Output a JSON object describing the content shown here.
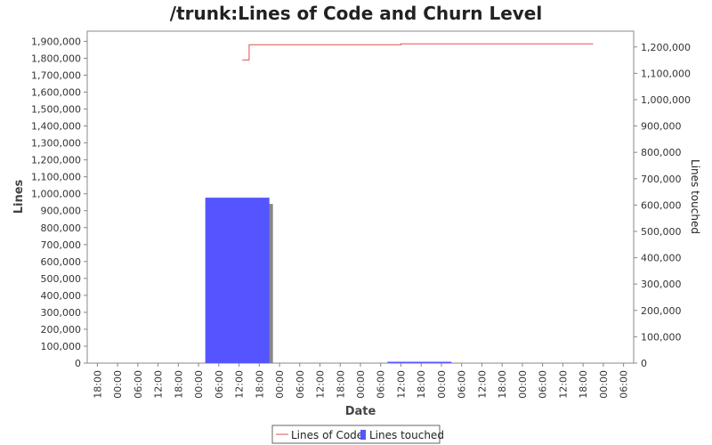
{
  "chart_data": {
    "type": "bar",
    "title": "/trunk:Lines of Code and Churn Level",
    "xlabel": "Date",
    "ylabel": "Lines",
    "ylabel_right": "Lines touched",
    "ylim": [
      0,
      1960000
    ],
    "ylim_right": [
      0,
      1260000
    ],
    "y_ticks": [
      0,
      100000,
      200000,
      300000,
      400000,
      500000,
      600000,
      700000,
      800000,
      900000,
      1000000,
      1100000,
      1200000,
      1300000,
      1400000,
      1500000,
      1600000,
      1700000,
      1800000,
      1900000
    ],
    "y_tick_labels": [
      "0",
      "100,000",
      "200,000",
      "300,000",
      "400,000",
      "500,000",
      "600,000",
      "700,000",
      "800,000",
      "900,000",
      "1,000,000",
      "1,100,000",
      "1,200,000",
      "1,300,000",
      "1,400,000",
      "1,500,000",
      "1,600,000",
      "1,700,000",
      "1,800,000",
      "1,900,000"
    ],
    "y_right_ticks": [
      0,
      100000,
      200000,
      300000,
      400000,
      500000,
      600000,
      700000,
      800000,
      900000,
      1000000,
      1100000,
      1200000
    ],
    "y_right_tick_labels": [
      "0",
      "100,000",
      "200,000",
      "300,000",
      "400,000",
      "500,000",
      "600,000",
      "700,000",
      "800,000",
      "900,000",
      "1,000,000",
      "1,100,000",
      "1,200,000"
    ],
    "x_ticks": [
      "18:00",
      "00:00",
      "06:00",
      "12:00",
      "18:00",
      "00:00",
      "06:00",
      "12:00",
      "18:00",
      "00:00",
      "06:00",
      "12:00",
      "18:00",
      "00:00",
      "06:00",
      "12:00",
      "18:00",
      "00:00",
      "06:00",
      "12:00",
      "18:00",
      "00:00",
      "06:00",
      "12:00",
      "18:00",
      "00:00",
      "06:00"
    ],
    "x_range_hours": [
      -3,
      159
    ],
    "series": [
      {
        "name": "Lines of Code",
        "type": "step-line",
        "axis": "left",
        "color": "#e05050",
        "points": [
          [
            43,
            1790000
          ],
          [
            45,
            1790000
          ],
          [
            45,
            1880000
          ],
          [
            90,
            1880000
          ],
          [
            90,
            1885000
          ],
          [
            147,
            1885000
          ]
        ]
      },
      {
        "name": "Lines touched",
        "type": "bar",
        "axis": "right",
        "color": "#5555ff",
        "bars": [
          {
            "start": 32,
            "end": 51,
            "value": 628000
          },
          {
            "start": 86,
            "end": 105,
            "value": 1500
          }
        ]
      }
    ],
    "legend": {
      "position": "bottom",
      "entries": [
        "Lines of Code",
        "Lines touched"
      ]
    },
    "grid": false,
    "colors": {
      "plot_border": "#888888",
      "bar_shadow": "#888888"
    }
  }
}
